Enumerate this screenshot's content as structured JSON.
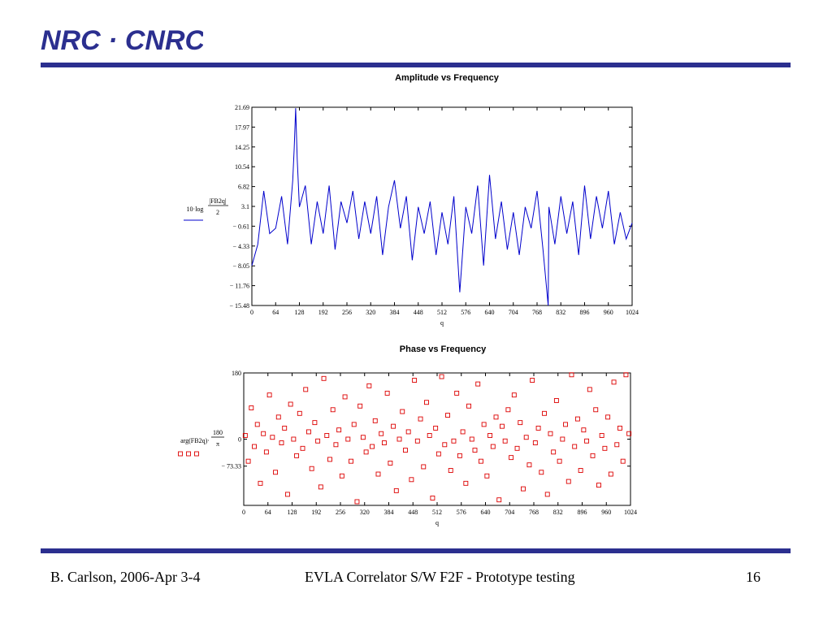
{
  "header": {
    "logo_text": "NRC · CNRC",
    "colors": {
      "brand": "#2b2f8f"
    }
  },
  "footer": {
    "left": "B. Carlson, 2006-Apr 3-4",
    "center": "EVLA Correlator S/W F2F - Prototype testing",
    "right": "16"
  },
  "chart_data": [
    {
      "type": "line",
      "title": "Amplitude vs Frequency",
      "xlabel": "q",
      "ylabel": "10·log(|FB2q|/2)",
      "ylabel_parts": {
        "prefix": "10·log",
        "numerator": "|FB2q|",
        "denominator": "2"
      },
      "xlim": [
        0,
        1024
      ],
      "ylim": [
        -15.48,
        21.69
      ],
      "xticks": [
        "0",
        "64",
        "128",
        "192",
        "256",
        "320",
        "384",
        "448",
        "512",
        "576",
        "640",
        "704",
        "768",
        "832",
        "896",
        "960",
        "1024"
      ],
      "yticks": [
        "21.69",
        "17.97",
        "14.25",
        "10.54",
        "6.82",
        "3.1",
        "-0.61",
        "-4.33",
        "-8.05",
        "-11.76",
        "-15.48"
      ],
      "color": "#0000cc",
      "series": [
        {
          "x": [
            0,
            16,
            32,
            48,
            64,
            80,
            96,
            110,
            114,
            118,
            122,
            128,
            144,
            160,
            176,
            192,
            208,
            224,
            240,
            256,
            272,
            288,
            304,
            320,
            336,
            352,
            368,
            384,
            400,
            416,
            432,
            448,
            464,
            480,
            496,
            512,
            528,
            544,
            560,
            576,
            592,
            608,
            624,
            640,
            656,
            672,
            688,
            704,
            720,
            736,
            752,
            768,
            784,
            798,
            800,
            816,
            832,
            848,
            864,
            880,
            896,
            912,
            928,
            944,
            960,
            976,
            992,
            1008,
            1024
          ],
          "values": [
            -8,
            -4,
            6,
            -2,
            -1,
            5,
            -4,
            8,
            14,
            21.5,
            12,
            3,
            7,
            -4,
            4,
            -2,
            7,
            -5,
            4,
            0,
            6,
            -3,
            4,
            -2,
            5,
            -6,
            3,
            8,
            -1,
            5,
            -7,
            3,
            -2,
            4,
            -6,
            2,
            -4,
            5,
            -13,
            3,
            -2,
            7,
            -8,
            9,
            -3,
            4,
            -5,
            2,
            -6,
            3,
            -1,
            6,
            -5,
            -15.48,
            3,
            -4,
            5,
            -2,
            4,
            -6,
            7,
            -3,
            5,
            -1,
            6,
            -4,
            2,
            -3,
            0
          ]
        }
      ],
      "grid": false
    },
    {
      "type": "scatter",
      "title": "Phase vs Frequency",
      "xlabel": "q",
      "ylabel": "arg(FB2q)·180/π",
      "ylabel_parts": {
        "prefix": "arg(FB2q)·",
        "numerator": "180",
        "denominator": "π"
      },
      "xlim": [
        0,
        1024
      ],
      "ylim": [
        -180,
        180
      ],
      "xticks": [
        "0",
        "64",
        "128",
        "192",
        "256",
        "320",
        "384",
        "448",
        "512",
        "576",
        "640",
        "704",
        "768",
        "832",
        "896",
        "960",
        "1024"
      ],
      "yticks": [
        "180",
        "0",
        "-73.33"
      ],
      "ytick_values": [
        180,
        0,
        -73.33
      ],
      "color": "#dd0000",
      "marker": "open-square",
      "series": [
        {
          "x": [
            4,
            12,
            20,
            28,
            36,
            44,
            52,
            60,
            68,
            76,
            84,
            92,
            100,
            108,
            116,
            124,
            132,
            140,
            148,
            156,
            164,
            172,
            180,
            188,
            196,
            204,
            212,
            220,
            228,
            236,
            244,
            252,
            260,
            268,
            276,
            284,
            292,
            300,
            308,
            316,
            324,
            332,
            340,
            348,
            356,
            364,
            372,
            380,
            388,
            396,
            404,
            412,
            420,
            428,
            436,
            444,
            452,
            460,
            468,
            476,
            484,
            492,
            500,
            508,
            516,
            524,
            532,
            540,
            548,
            556,
            564,
            572,
            580,
            588,
            596,
            604,
            612,
            620,
            628,
            636,
            644,
            652,
            660,
            668,
            676,
            684,
            692,
            700,
            708,
            716,
            724,
            732,
            740,
            748,
            756,
            764,
            772,
            780,
            788,
            796,
            804,
            812,
            820,
            828,
            836,
            844,
            852,
            860,
            868,
            876,
            884,
            892,
            900,
            908,
            916,
            924,
            932,
            940,
            948,
            956,
            964,
            972,
            980,
            988,
            996,
            1004,
            1012,
            1020
          ],
          "values": [
            10,
            -60,
            85,
            -20,
            40,
            -120,
            15,
            -35,
            120,
            5,
            -90,
            60,
            -10,
            30,
            -150,
            95,
            0,
            -45,
            70,
            -25,
            135,
            20,
            -80,
            45,
            -5,
            -130,
            165,
            10,
            -55,
            80,
            -15,
            25,
            -100,
            115,
            0,
            -60,
            40,
            -170,
            90,
            5,
            -35,
            145,
            -20,
            50,
            -95,
            15,
            -10,
            125,
            -65,
            35,
            -140,
            0,
            75,
            -30,
            20,
            -110,
            160,
            -5,
            55,
            -75,
            100,
            10,
            -160,
            30,
            -40,
            170,
            -15,
            65,
            -85,
            -5,
            125,
            -45,
            20,
            -120,
            90,
            0,
            -30,
            150,
            -60,
            40,
            -100,
            10,
            -20,
            60,
            -165,
            35,
            -5,
            80,
            -50,
            120,
            -25,
            45,
            -135,
            5,
            -70,
            160,
            -10,
            30,
            -90,
            70,
            -150,
            15,
            -35,
            105,
            -60,
            0,
            40,
            -115,
            175,
            -20,
            55,
            -85,
            25,
            -5,
            135,
            -45,
            80,
            -125,
            10,
            -25,
            60,
            -95,
            155,
            -15,
            30,
            -60,
            175,
            15
          ]
        }
      ],
      "grid": false
    }
  ]
}
